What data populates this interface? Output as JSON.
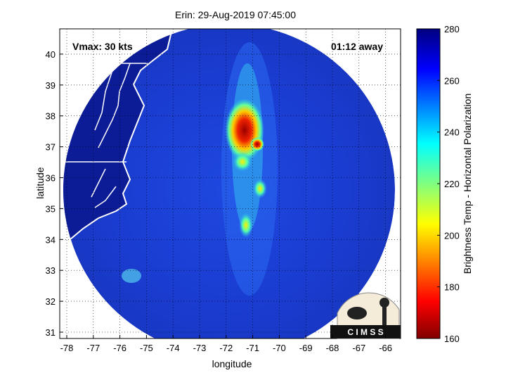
{
  "title": "Erin: 29-Aug-2019 07:45:00",
  "annotations": {
    "vmax": "Vmax: 30 kts",
    "time_away": "01:12 away"
  },
  "x_axis": {
    "label": "longitude",
    "ticks": [
      "-78",
      "-77",
      "-76",
      "-75",
      "-74",
      "-73",
      "-72",
      "-71",
      "-70",
      "-69",
      "-68",
      "-67",
      "-66"
    ]
  },
  "y_axis": {
    "label": "latitude",
    "ticks": [
      "31",
      "32",
      "33",
      "34",
      "35",
      "36",
      "37",
      "38",
      "39",
      "40"
    ]
  },
  "colorbar": {
    "label": "Brightness Temp - Horizontal Polarization",
    "ticks": [
      "160",
      "180",
      "200",
      "220",
      "240",
      "260",
      "280"
    ],
    "min": 160,
    "max": 280
  },
  "logo": {
    "text": "C I M S S"
  },
  "colors": {
    "background_scene": "#1a3cc8",
    "land": "#0a1a8a",
    "coast": "#ffffff",
    "hot": "#cc0000",
    "warm": "#ffee00",
    "cool": "#33ddee"
  }
}
